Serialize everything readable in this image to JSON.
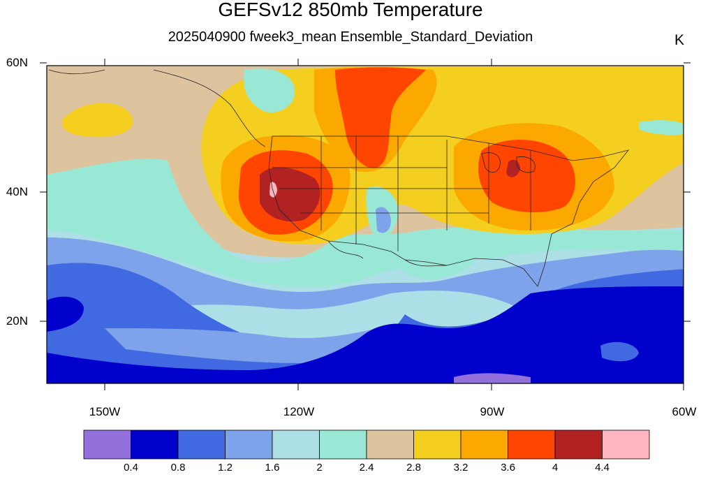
{
  "title": "GEFSv12 850mb Temperature",
  "subtitle": "2025040900 fweek3_mean Ensemble_Standard_Deviation",
  "units": "K",
  "lat_labels": [
    "60N",
    "40N",
    "20N"
  ],
  "lon_labels": [
    "150W",
    "120W",
    "90W",
    "60W"
  ],
  "colorbar": {
    "colors": [
      "#9370DB",
      "#0000CD",
      "#4169E1",
      "#7FA3EA",
      "#ADDFE6",
      "#98E8D5",
      "#DEC49E",
      "#F5CF1F",
      "#FBA900",
      "#FF4500",
      "#B22222",
      "#FFB6C1"
    ],
    "ticks": [
      "0.4",
      "0.8",
      "1.2",
      "1.6",
      "2",
      "2.4",
      "2.8",
      "3.2",
      "3.6",
      "4",
      "4.4"
    ]
  }
}
